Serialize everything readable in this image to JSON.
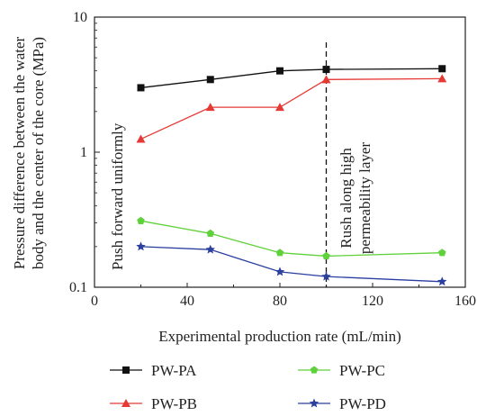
{
  "chart_data": {
    "type": "line",
    "title": "",
    "xlabel": "Experimental production rate (mL/min)",
    "ylabel_line1": "Pressure difference between the water",
    "ylabel_line2": "body and the center of the core (MPa)",
    "xlim": [
      0,
      160
    ],
    "ylim": [
      0.1,
      10
    ],
    "yscale": "log",
    "grid": false,
    "x_ticks": [
      0,
      40,
      80,
      120,
      160
    ],
    "x_tick_labels": [
      "0",
      "40",
      "80",
      "120",
      "160"
    ],
    "y_ticks": [
      0.1,
      1,
      10
    ],
    "y_tick_labels": [
      "0.1",
      "1",
      "10"
    ],
    "x": [
      20,
      50,
      80,
      100,
      150
    ],
    "series": [
      {
        "name": "PW-PA",
        "color": "#111111",
        "marker": "square",
        "values": [
          3.0,
          3.45,
          4.0,
          4.1,
          4.15
        ]
      },
      {
        "name": "PW-PB",
        "color": "#e53935",
        "marker": "triangle",
        "values": [
          1.25,
          2.15,
          2.15,
          3.45,
          3.5
        ]
      },
      {
        "name": "PW-PC",
        "color": "#5fd13a",
        "marker": "pentagon",
        "values": [
          0.31,
          0.25,
          0.18,
          0.17,
          0.18
        ]
      },
      {
        "name": "PW-PD",
        "color": "#2a3f9e",
        "marker": "star",
        "values": [
          0.2,
          0.19,
          0.13,
          0.12,
          0.11
        ]
      }
    ],
    "divider_x": 100,
    "annotations": {
      "left": "Push forward uniformly",
      "right_line1": "Rush along high",
      "right_line2": "permeability layer"
    },
    "legend_position": "bottom"
  }
}
